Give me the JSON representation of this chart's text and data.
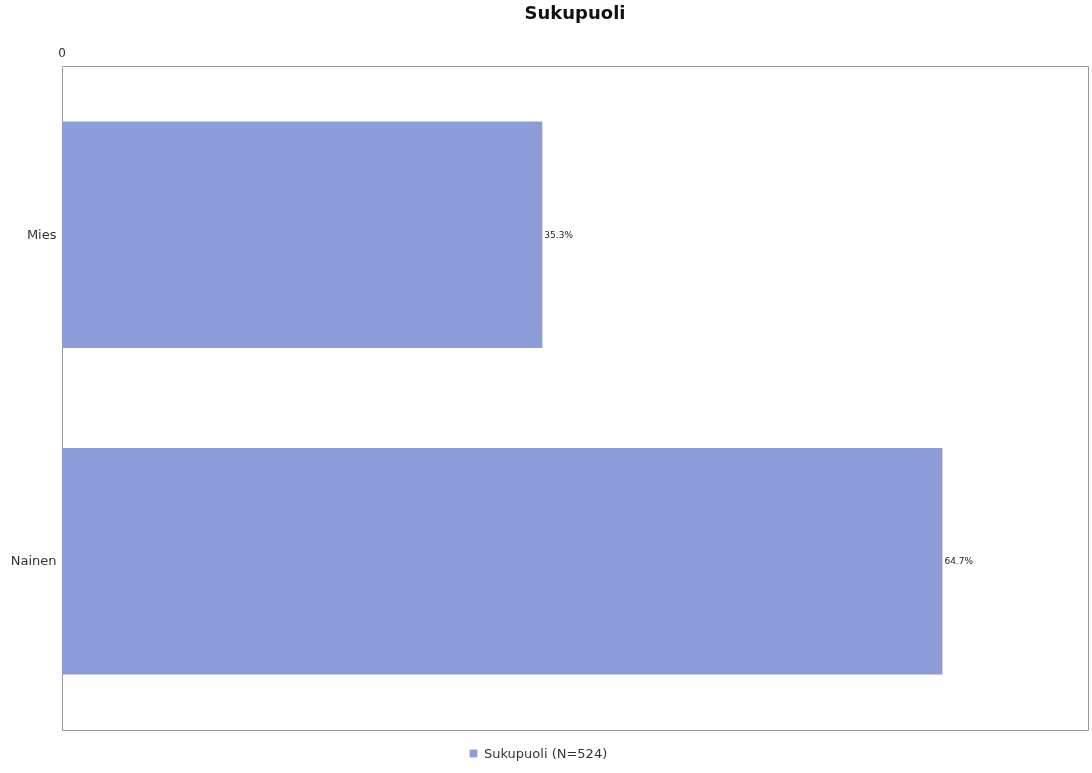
{
  "chart_data": {
    "type": "bar",
    "orientation": "horizontal",
    "title": "Sukupuoli",
    "categories": [
      "Mies",
      "Nainen"
    ],
    "series": [
      {
        "name": "Sukupuoli (N=524)",
        "color": "#8b9cd8",
        "values": [
          35.3,
          64.7
        ],
        "value_labels": [
          "35.3%",
          "64.7%"
        ]
      }
    ],
    "xlim": [
      0,
      75.4
    ],
    "annotations": [
      "0"
    ],
    "legend": "bottom"
  }
}
